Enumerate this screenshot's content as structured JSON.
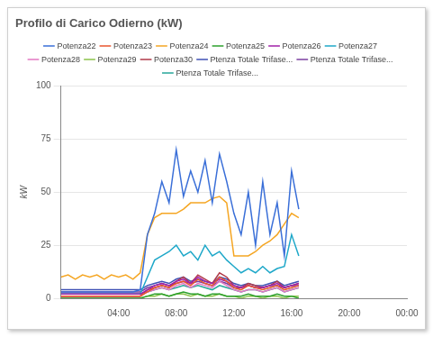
{
  "chart_data": {
    "type": "line",
    "title": "Profilo di Carico Odierno (kW)",
    "y_label": "kW",
    "x": [
      0,
      0.5,
      1,
      1.5,
      2,
      2.5,
      3,
      3.5,
      4,
      4.5,
      5,
      5.5,
      6,
      6.5,
      7,
      7.5,
      8,
      8.5,
      9,
      9.5,
      10,
      10.5,
      11,
      11.5,
      12,
      12.5,
      13,
      13.5,
      14,
      14.5,
      15,
      15.5,
      16,
      16.5
    ],
    "xlim": [
      0,
      24
    ],
    "xticks": [
      {
        "value": 4,
        "label": "04:00"
      },
      {
        "value": 8,
        "label": "08:00"
      },
      {
        "value": 12,
        "label": "12:00"
      },
      {
        "value": 16,
        "label": "16:00"
      },
      {
        "value": 20,
        "label": "20:00"
      },
      {
        "value": 24,
        "label": "00:00"
      }
    ],
    "ylim": [
      0,
      100
    ],
    "yticks": [
      0,
      25,
      50,
      75,
      100
    ],
    "grid": true,
    "legend": "top",
    "series": [
      {
        "name": "Potenza22",
        "color": "#3a6fd8",
        "values": [
          3,
          3,
          3,
          3,
          3,
          3,
          3,
          3,
          3,
          3,
          3,
          4,
          30,
          40,
          55,
          45,
          70,
          48,
          60,
          50,
          65,
          45,
          68,
          55,
          40,
          30,
          50,
          25,
          55,
          30,
          45,
          20,
          60,
          42
        ]
      },
      {
        "name": "Potenza23",
        "color": "#e8542e",
        "values": [
          1,
          1,
          1,
          1,
          1,
          1,
          1,
          1,
          1,
          1,
          1,
          1,
          3,
          5,
          6,
          5,
          7,
          8,
          6,
          9,
          7,
          6,
          10,
          8,
          5,
          4,
          6,
          5,
          4,
          5,
          6,
          4,
          5,
          6
        ]
      },
      {
        "name": "Potenza24",
        "color": "#f5a623",
        "values": [
          10,
          11,
          9,
          11,
          10,
          11,
          9,
          11,
          10,
          11,
          9,
          12,
          30,
          38,
          40,
          40,
          40,
          42,
          45,
          45,
          45,
          47,
          48,
          45,
          20,
          20,
          20,
          22,
          25,
          27,
          30,
          35,
          40,
          38
        ]
      },
      {
        "name": "Potenza25",
        "color": "#2ca02c",
        "values": [
          0,
          0,
          0,
          0,
          0,
          0,
          0,
          0,
          0,
          0,
          0,
          0,
          1,
          2,
          2,
          1,
          2,
          3,
          2,
          2,
          1,
          2,
          2,
          1,
          1,
          1,
          2,
          1,
          1,
          1,
          2,
          1,
          1,
          0
        ]
      },
      {
        "name": "Potenza26",
        "color": "#a020a8",
        "values": [
          2,
          2,
          2,
          2,
          2,
          2,
          2,
          2,
          2,
          2,
          2,
          2,
          4,
          6,
          7,
          6,
          8,
          9,
          7,
          10,
          8,
          7,
          9,
          8,
          6,
          5,
          6,
          5,
          5,
          6,
          7,
          5,
          6,
          7
        ]
      },
      {
        "name": "Potenza27",
        "color": "#1fa8c9",
        "values": [
          2,
          2,
          2,
          2,
          2,
          2,
          2,
          2,
          2,
          2,
          2,
          2,
          10,
          18,
          20,
          22,
          25,
          20,
          22,
          18,
          25,
          20,
          22,
          18,
          15,
          12,
          14,
          12,
          15,
          12,
          14,
          15,
          30,
          20
        ]
      },
      {
        "name": "Potenza28",
        "color": "#e377c2",
        "values": [
          1,
          1,
          1,
          1,
          1,
          1,
          1,
          1,
          1,
          1,
          1,
          1,
          3,
          4,
          5,
          4,
          6,
          7,
          5,
          7,
          6,
          5,
          8,
          6,
          4,
          3,
          4,
          4,
          3,
          4,
          5,
          3,
          4,
          5
        ]
      },
      {
        "name": "Potenza29",
        "color": "#8bc34a",
        "values": [
          0,
          0,
          0,
          0,
          0,
          0,
          0,
          0,
          0,
          0,
          0,
          0,
          1,
          1,
          2,
          1,
          2,
          2,
          1,
          2,
          1,
          1,
          2,
          1,
          1,
          0,
          1,
          1,
          0,
          1,
          1,
          0,
          1,
          1
        ]
      },
      {
        "name": "Potenza30",
        "color": "#b03a48",
        "values": [
          1,
          1,
          1,
          1,
          1,
          1,
          1,
          1,
          1,
          1,
          1,
          1,
          4,
          5,
          6,
          5,
          8,
          10,
          7,
          11,
          9,
          7,
          12,
          10,
          6,
          5,
          7,
          6,
          5,
          6,
          8,
          5,
          6,
          7
        ]
      },
      {
        "name": "Ptenza Totale Trifase...",
        "color": "#3f51b5",
        "values": [
          4,
          4,
          4,
          4,
          4,
          4,
          4,
          4,
          4,
          4,
          4,
          4,
          6,
          7,
          8,
          7,
          9,
          10,
          8,
          9,
          8,
          7,
          10,
          9,
          7,
          6,
          7,
          6,
          6,
          7,
          8,
          6,
          7,
          8
        ]
      },
      {
        "name": "Ptenza Totale Trifase...",
        "color": "#7b3fa0",
        "values": [
          3,
          3,
          3,
          3,
          3,
          3,
          3,
          3,
          3,
          3,
          3,
          3,
          5,
          6,
          7,
          6,
          7,
          8,
          7,
          8,
          7,
          6,
          8,
          7,
          5,
          5,
          6,
          5,
          5,
          6,
          6,
          5,
          6,
          6
        ]
      },
      {
        "name": "Ptenza Totale Trifase...",
        "color": "#26a69a",
        "values": [
          2,
          2,
          2,
          2,
          2,
          2,
          2,
          2,
          2,
          2,
          2,
          2,
          3,
          4,
          5,
          4,
          5,
          6,
          5,
          6,
          5,
          4,
          6,
          5,
          4,
          3,
          4,
          4,
          3,
          4,
          5,
          3,
          4,
          5
        ]
      }
    ]
  }
}
